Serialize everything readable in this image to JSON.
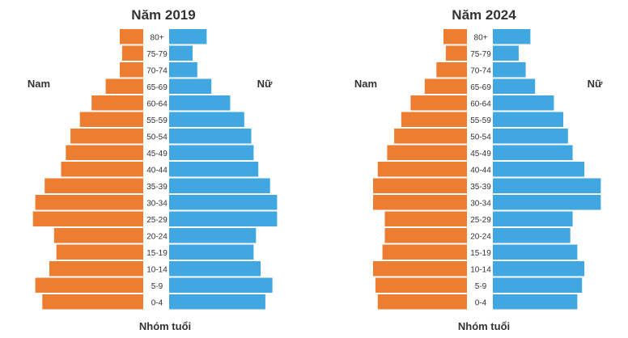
{
  "chart_data": [
    {
      "type": "bar",
      "title": "Năm 2019",
      "xlabel": "Nhóm tuổi",
      "left_label": "Nam",
      "right_label": "Nữ",
      "categories": [
        "0-4",
        "5-9",
        "10-14",
        "15-19",
        "20-24",
        "25-29",
        "30-34",
        "35-39",
        "40-44",
        "45-49",
        "50-54",
        "55-59",
        "60-64",
        "65-69",
        "70-74",
        "75-79",
        "80+"
      ],
      "series": [
        {
          "name": "Nam",
          "color": "#ed7d31",
          "values": [
            4.3,
            4.6,
            4.0,
            3.7,
            3.8,
            4.7,
            4.6,
            4.2,
            3.5,
            3.3,
            3.1,
            2.7,
            2.2,
            1.6,
            1.0,
            0.9,
            1.0
          ]
        },
        {
          "name": "Nữ",
          "color": "#41a7e1",
          "values": [
            4.1,
            4.4,
            3.9,
            3.6,
            3.7,
            4.6,
            4.6,
            4.3,
            3.8,
            3.6,
            3.5,
            3.2,
            2.6,
            1.8,
            1.2,
            1.0,
            1.6
          ]
        }
      ]
    },
    {
      "type": "bar",
      "title": "Năm 2024",
      "xlabel": "Nhóm tuổi",
      "left_label": "Nam",
      "right_label": "Nữ",
      "categories": [
        "0-4",
        "5-9",
        "10-14",
        "15-19",
        "20-24",
        "25-29",
        "30-34",
        "35-39",
        "40-44",
        "45-49",
        "50-54",
        "55-59",
        "60-64",
        "65-69",
        "70-74",
        "75-79",
        "80+"
      ],
      "series": [
        {
          "name": "Nam",
          "color": "#ed7d31",
          "values": [
            3.8,
            3.9,
            4.0,
            3.6,
            3.5,
            3.5,
            4.0,
            4.0,
            3.8,
            3.4,
            3.1,
            2.8,
            2.4,
            1.8,
            1.3,
            0.9,
            1.0
          ]
        },
        {
          "name": "Nữ",
          "color": "#41a7e1",
          "values": [
            3.6,
            3.8,
            3.9,
            3.6,
            3.3,
            3.4,
            4.6,
            4.6,
            3.9,
            3.4,
            3.2,
            3.0,
            2.6,
            1.8,
            1.4,
            1.1,
            1.6
          ]
        }
      ]
    }
  ]
}
